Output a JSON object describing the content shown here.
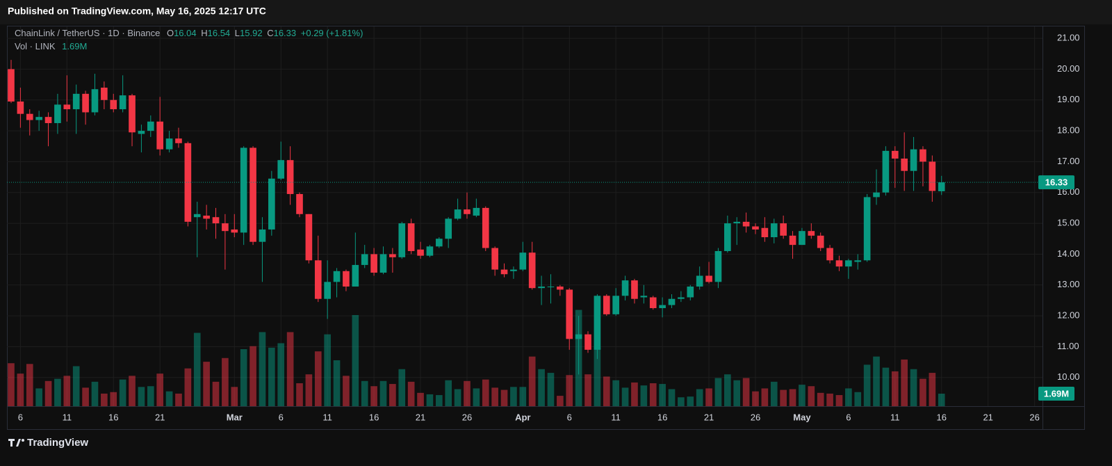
{
  "chart_data": {
    "type": "candlestick",
    "publisher": "Published on TradingView.com, May 16, 2025 12:17 UTC",
    "symbol": "ChainLink / TetherUS · 1D · Binance",
    "ohlc_labels": [
      "O",
      "H",
      "L",
      "C"
    ],
    "change": "+0.29",
    "change_pct": "(+1.81%)",
    "volume_title": "Vol · LINK",
    "volume_value_label": "1.69M",
    "brand": "TradingView",
    "up_color": "#089981",
    "down_color": "#f23645",
    "volume_up_color": "rgba(8,153,129,0.5)",
    "volume_down_color": "rgba(242,54,69,0.5)",
    "grid": true,
    "x": [
      "02-05",
      "02-06",
      "02-07",
      "02-08",
      "02-09",
      "02-10",
      "02-11",
      "02-12",
      "02-13",
      "02-14",
      "02-15",
      "02-16",
      "02-17",
      "02-18",
      "02-19",
      "02-20",
      "02-21",
      "02-22",
      "02-23",
      "02-24",
      "02-25",
      "02-26",
      "02-27",
      "02-28",
      "03-01",
      "03-02",
      "03-03",
      "03-04",
      "03-05",
      "03-06",
      "03-07",
      "03-08",
      "03-09",
      "03-10",
      "03-11",
      "03-12",
      "03-13",
      "03-14",
      "03-15",
      "03-16",
      "03-17",
      "03-18",
      "03-19",
      "03-20",
      "03-21",
      "03-22",
      "03-23",
      "03-24",
      "03-25",
      "03-26",
      "03-27",
      "03-28",
      "03-29",
      "03-30",
      "03-31",
      "04-01",
      "04-02",
      "04-03",
      "04-04",
      "04-05",
      "04-06",
      "04-07",
      "04-08",
      "04-09",
      "04-10",
      "04-11",
      "04-12",
      "04-13",
      "04-14",
      "04-15",
      "04-16",
      "04-17",
      "04-18",
      "04-19",
      "04-20",
      "04-21",
      "04-22",
      "04-23",
      "04-24",
      "04-25",
      "04-26",
      "04-27",
      "04-28",
      "04-29",
      "04-30",
      "05-01",
      "05-02",
      "05-03",
      "05-04",
      "05-05",
      "05-06",
      "05-07",
      "05-08",
      "05-09",
      "05-10",
      "05-11",
      "05-12",
      "05-13",
      "05-14",
      "05-15",
      "05-16"
    ],
    "open": [
      20.0,
      18.95,
      18.55,
      18.35,
      18.45,
      18.25,
      18.85,
      18.7,
      19.2,
      18.6,
      19.4,
      19.0,
      18.7,
      19.15,
      17.9,
      18.0,
      18.3,
      17.4,
      17.75,
      17.6,
      15.2,
      15.25,
      15.2,
      15.0,
      14.8,
      14.7,
      17.45,
      14.4,
      14.8,
      16.45,
      17.05,
      15.95,
      15.3,
      13.8,
      12.55,
      13.1,
      13.45,
      12.95,
      13.65,
      14.0,
      13.4,
      14.0,
      13.9,
      15.0,
      14.15,
      13.95,
      14.25,
      14.5,
      15.15,
      15.45,
      15.25,
      15.5,
      14.2,
      13.5,
      13.45,
      13.5,
      14.05,
      12.9,
      12.95,
      12.95,
      12.85,
      11.25,
      11.4,
      10.9,
      12.65,
      12.05,
      12.65,
      13.15,
      12.6,
      12.6,
      12.25,
      12.35,
      12.55,
      12.6,
      12.95,
      13.3,
      13.1,
      14.1,
      15.0,
      15.05,
      14.9,
      14.85,
      14.55,
      15.0,
      14.6,
      14.3,
      14.75,
      14.6,
      14.2,
      13.8,
      13.6,
      13.75,
      13.8,
      15.85,
      16.0,
      17.35,
      17.1,
      16.7,
      17.4,
      17.0,
      16.04
    ],
    "high": [
      20.3,
      19.4,
      18.7,
      18.65,
      18.6,
      19.2,
      19.8,
      19.5,
      19.3,
      19.85,
      19.6,
      19.2,
      19.8,
      19.2,
      18.2,
      18.5,
      19.1,
      18.0,
      18.1,
      17.65,
      15.7,
      15.6,
      15.5,
      15.3,
      15.3,
      17.5,
      17.5,
      15.2,
      16.7,
      17.65,
      17.5,
      16.0,
      15.3,
      14.6,
      13.8,
      13.55,
      13.5,
      14.7,
      14.3,
      14.2,
      14.25,
      14.2,
      15.05,
      15.15,
      14.4,
      14.3,
      14.55,
      15.2,
      15.8,
      16.0,
      15.8,
      15.55,
      14.25,
      13.7,
      13.6,
      14.4,
      14.4,
      13.3,
      13.35,
      13.0,
      12.9,
      12.0,
      11.5,
      12.7,
      12.7,
      12.9,
      13.3,
      13.2,
      13.0,
      12.65,
      12.6,
      12.7,
      12.8,
      13.0,
      13.6,
      13.75,
      14.2,
      15.25,
      15.2,
      15.35,
      15.0,
      15.2,
      15.15,
      15.25,
      14.75,
      14.85,
      15.0,
      14.7,
      14.3,
      13.95,
      13.85,
      14.0,
      15.95,
      16.75,
      17.5,
      17.5,
      17.95,
      17.8,
      17.5,
      17.2,
      16.54
    ],
    "low": [
      18.9,
      18.1,
      17.85,
      18.0,
      17.5,
      17.9,
      18.3,
      17.9,
      18.2,
      18.5,
      18.7,
      18.6,
      18.6,
      17.5,
      17.3,
      17.8,
      17.2,
      17.3,
      17.45,
      14.9,
      13.9,
      14.8,
      14.5,
      13.5,
      14.55,
      14.3,
      14.3,
      13.1,
      14.6,
      16.4,
      15.6,
      15.2,
      13.7,
      12.45,
      11.9,
      12.6,
      12.8,
      12.95,
      13.55,
      13.3,
      13.35,
      13.4,
      13.85,
      14.0,
      13.85,
      13.9,
      14.2,
      14.2,
      15.1,
      15.15,
      15.2,
      14.1,
      13.3,
      13.25,
      13.2,
      13.45,
      12.85,
      12.35,
      12.4,
      12.65,
      10.9,
      10.1,
      10.8,
      10.6,
      12.0,
      12.0,
      12.5,
      12.4,
      12.4,
      12.2,
      11.95,
      12.25,
      12.45,
      12.5,
      12.85,
      13.05,
      12.9,
      14.05,
      14.3,
      14.7,
      14.65,
      14.4,
      14.35,
      14.5,
      13.85,
      14.3,
      14.5,
      14.1,
      13.7,
      13.45,
      13.2,
      13.5,
      13.75,
      15.6,
      15.9,
      16.15,
      16.05,
      16.05,
      16.2,
      15.7,
      15.92
    ],
    "close": [
      18.95,
      18.55,
      18.35,
      18.45,
      18.25,
      18.85,
      18.7,
      19.2,
      18.6,
      19.35,
      19.0,
      18.7,
      19.15,
      17.95,
      18.0,
      18.3,
      17.4,
      17.75,
      17.6,
      15.05,
      15.3,
      15.15,
      15.0,
      14.75,
      14.7,
      17.45,
      14.4,
      14.8,
      16.45,
      17.05,
      15.95,
      15.3,
      13.8,
      12.55,
      13.1,
      13.45,
      12.95,
      13.65,
      14.0,
      13.4,
      14.0,
      13.9,
      15.0,
      14.1,
      13.95,
      14.25,
      14.5,
      15.15,
      15.45,
      15.3,
      15.5,
      14.2,
      13.5,
      13.35,
      13.5,
      14.05,
      12.9,
      12.95,
      12.95,
      12.85,
      11.25,
      11.4,
      10.9,
      12.65,
      12.05,
      12.65,
      13.15,
      12.55,
      12.65,
      12.25,
      12.35,
      12.55,
      12.6,
      12.95,
      13.3,
      13.1,
      14.1,
      15.0,
      15.05,
      14.9,
      14.8,
      14.55,
      15.0,
      14.6,
      14.3,
      14.75,
      14.6,
      14.2,
      13.8,
      13.6,
      13.8,
      13.8,
      15.85,
      16.0,
      17.35,
      17.1,
      16.7,
      17.4,
      17.0,
      16.05,
      16.33
    ],
    "volume": [
      5.8,
      4.4,
      5.7,
      2.4,
      3.4,
      3.7,
      4.1,
      5.4,
      2.5,
      3.3,
      1.7,
      1.9,
      3.6,
      4.1,
      2.6,
      2.7,
      4.4,
      2.0,
      1.7,
      5.1,
      9.9,
      6.0,
      3.3,
      6.5,
      2.6,
      7.7,
      8.1,
      10.0,
      7.9,
      8.5,
      10.0,
      3.1,
      4.3,
      7.4,
      9.7,
      6.2,
      4.1,
      12.3,
      3.4,
      2.7,
      3.4,
      3.0,
      5.0,
      3.3,
      1.8,
      1.6,
      1.5,
      3.5,
      2.3,
      3.4,
      2.4,
      3.6,
      2.5,
      2.2,
      2.6,
      2.6,
      6.7,
      5.0,
      4.5,
      1.4,
      4.2,
      13.0,
      4.3,
      7.9,
      4.0,
      3.5,
      2.5,
      3.2,
      2.8,
      3.1,
      3.0,
      2.3,
      1.2,
      1.3,
      2.3,
      2.4,
      3.8,
      4.3,
      3.5,
      3.8,
      2.0,
      2.4,
      3.3,
      2.2,
      2.3,
      2.9,
      2.7,
      1.8,
      1.7,
      1.5,
      2.4,
      1.9,
      5.6,
      6.7,
      5.2,
      4.7,
      6.3,
      5.0,
      3.7,
      4.5,
      1.69
    ],
    "xlim": [
      "02-04",
      "05-27"
    ],
    "xticks": [
      {
        "value": "02-06",
        "label": "6"
      },
      {
        "value": "02-11",
        "label": "11"
      },
      {
        "value": "02-16",
        "label": "16"
      },
      {
        "value": "02-21",
        "label": "21"
      },
      {
        "value": "03-01",
        "label": "Mar"
      },
      {
        "value": "03-06",
        "label": "6"
      },
      {
        "value": "03-11",
        "label": "11"
      },
      {
        "value": "03-16",
        "label": "16"
      },
      {
        "value": "03-21",
        "label": "21"
      },
      {
        "value": "03-26",
        "label": "26"
      },
      {
        "value": "04-01",
        "label": "Apr"
      },
      {
        "value": "04-06",
        "label": "6"
      },
      {
        "value": "04-11",
        "label": "11"
      },
      {
        "value": "04-16",
        "label": "16"
      },
      {
        "value": "04-21",
        "label": "21"
      },
      {
        "value": "04-26",
        "label": "26"
      },
      {
        "value": "05-01",
        "label": "May"
      },
      {
        "value": "05-06",
        "label": "6"
      },
      {
        "value": "05-11",
        "label": "11"
      },
      {
        "value": "05-16",
        "label": "16"
      },
      {
        "value": "05-21",
        "label": "21"
      },
      {
        "value": "05-26",
        "label": "26"
      }
    ],
    "ylim": [
      9.07,
      21.34
    ],
    "yticks": [
      {
        "value": 10,
        "label": "10.00"
      },
      {
        "value": 11,
        "label": "11.00"
      },
      {
        "value": 12,
        "label": "12.00"
      },
      {
        "value": 13,
        "label": "13.00"
      },
      {
        "value": 14,
        "label": "14.00"
      },
      {
        "value": 15,
        "label": "15.00"
      },
      {
        "value": 16,
        "label": "16.00"
      },
      {
        "value": 17,
        "label": "17.00"
      },
      {
        "value": 18,
        "label": "18.00"
      },
      {
        "value": 19,
        "label": "19.00"
      },
      {
        "value": 20,
        "label": "20.00"
      },
      {
        "value": 21,
        "label": "21.00"
      }
    ],
    "vlim": [
      0,
      50
    ]
  }
}
